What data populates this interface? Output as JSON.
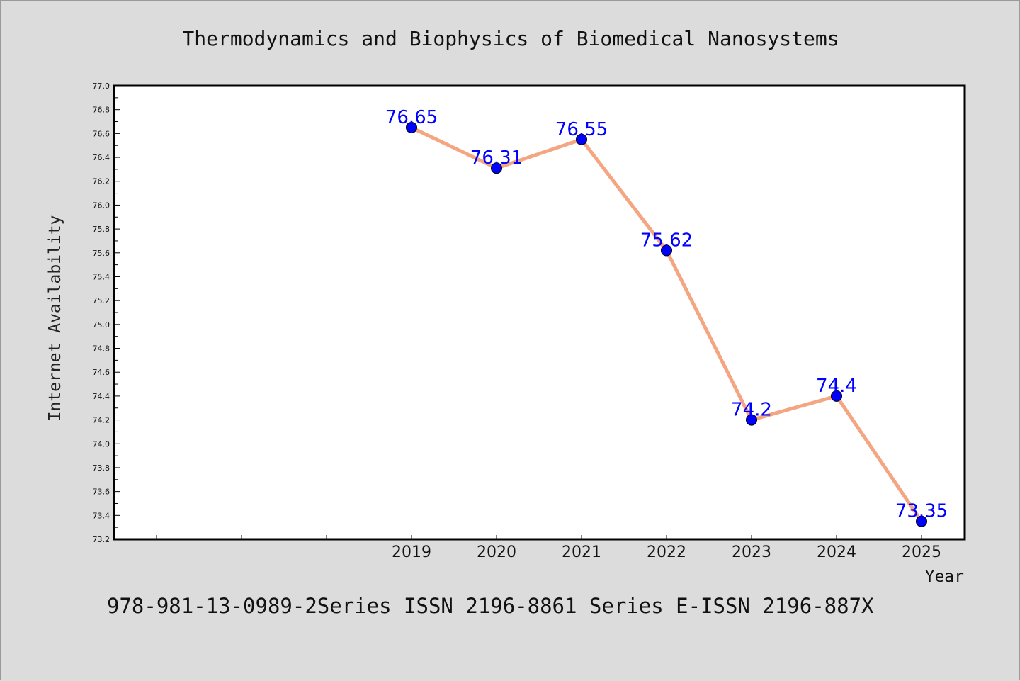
{
  "chart_data": {
    "type": "line",
    "title": "Thermodynamics and Biophysics of Biomedical Nanosystems",
    "xlabel": "Year",
    "ylabel": "Internet Availability",
    "categories": [
      "2019",
      "2020",
      "2021",
      "2022",
      "2023",
      "2024",
      "2025"
    ],
    "values": [
      76.65,
      76.31,
      76.55,
      75.62,
      74.2,
      74.4,
      73.35
    ],
    "data_labels": [
      "76.65",
      "76.31",
      "76.55",
      "75.62",
      "74.2",
      "74.4",
      "73.35"
    ],
    "ylim": [
      73.2,
      77.0
    ],
    "y_ticks": [
      "73.2",
      "73.4",
      "73.6",
      "73.8",
      "74.0",
      "74.2",
      "74.4",
      "74.6",
      "74.8",
      "75.0",
      "75.2",
      "75.4",
      "75.6",
      "75.8",
      "76.0",
      "76.2",
      "76.4",
      "76.6",
      "76.8",
      "77.0"
    ],
    "grid": false,
    "line_color": "#f4a582",
    "marker_color": "#0000ff",
    "label_color": "#0000ff"
  },
  "footer_text": "978-981-13-0989-2Series ISSN 2196-8861 Series E-ISSN 2196-887X",
  "colors": {
    "background": "#dcdcdc",
    "plot_background": "#ffffff"
  }
}
